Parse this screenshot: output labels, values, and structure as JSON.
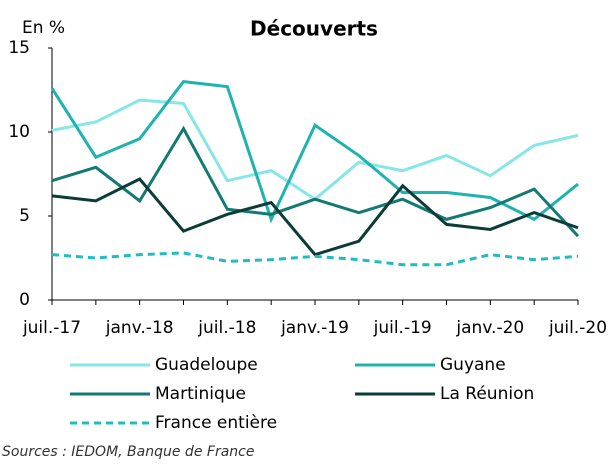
{
  "chart_data": {
    "type": "line",
    "title": "Découverts",
    "y_label": "En %",
    "source": "Sources : IEDOM, Banque de France",
    "categories": [
      "juil.-17",
      null,
      "janv.-18",
      null,
      "juil.-18",
      null,
      "janv.-19",
      null,
      "juil.-19",
      null,
      "janv.-20",
      null,
      "juil.-20"
    ],
    "series": [
      {
        "name": "Guadeloupe",
        "color": "#86e6e8",
        "style": "solid",
        "values": [
          10.1,
          10.6,
          11.9,
          11.7,
          7.1,
          7.7,
          6.0,
          8.2,
          7.7,
          8.6,
          7.4,
          9.2,
          9.8
        ]
      },
      {
        "name": "Guyane",
        "color": "#1fb3ae",
        "style": "solid",
        "values": [
          12.6,
          8.5,
          9.6,
          13.0,
          12.7,
          4.8,
          10.4,
          8.6,
          6.4,
          6.4,
          6.1,
          4.8,
          6.9
        ]
      },
      {
        "name": "Martinique",
        "color": "#137a73",
        "style": "solid",
        "values": [
          7.1,
          7.9,
          5.9,
          10.2,
          5.4,
          5.1,
          6.0,
          5.2,
          6.0,
          4.8,
          5.5,
          6.6,
          3.8
        ]
      },
      {
        "name": "La Réunion",
        "color": "#0c3b38",
        "style": "solid",
        "values": [
          6.2,
          5.9,
          7.2,
          4.1,
          5.1,
          5.8,
          2.7,
          3.5,
          6.8,
          4.5,
          4.2,
          5.2,
          4.3
        ]
      },
      {
        "name": "France entière",
        "color": "#1fbcc0",
        "style": "dashed",
        "values": [
          2.7,
          2.5,
          2.7,
          2.8,
          2.3,
          2.4,
          2.6,
          2.4,
          2.1,
          2.1,
          2.7,
          2.4,
          2.6
        ]
      }
    ],
    "ylim": [
      0,
      15
    ],
    "yticks": [
      0,
      5,
      10,
      15
    ],
    "grid": false
  }
}
